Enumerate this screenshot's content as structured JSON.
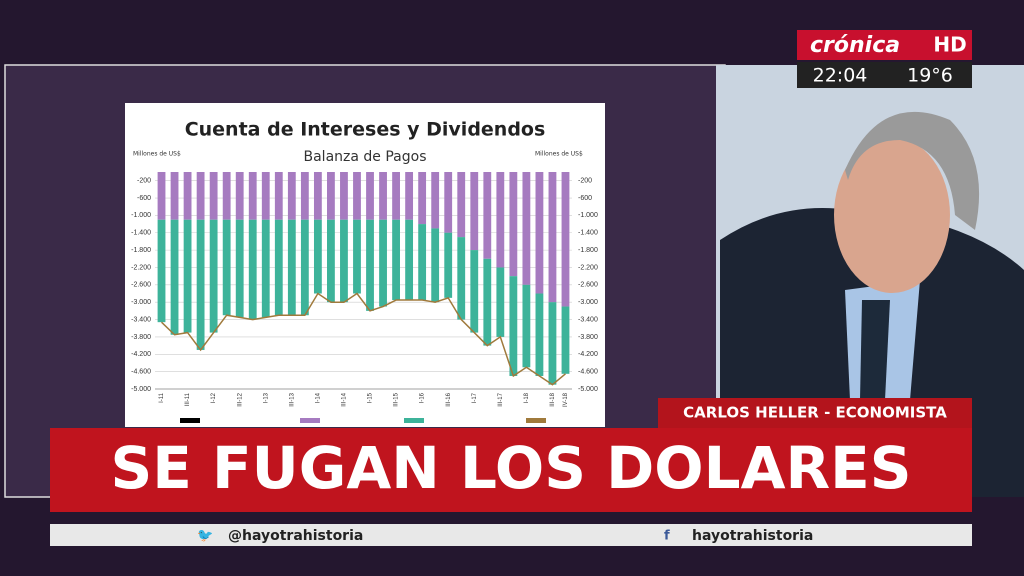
{
  "logo": {
    "brand": "crónica",
    "badge": "HD",
    "time": "22:04",
    "temperature": "19°6"
  },
  "chart_data": {
    "type": "bar",
    "stacked": true,
    "title": "Cuenta de Intereses y Dividendos",
    "subtitle": "Balanza de Pagos",
    "ylabel": "Millones de US$",
    "y2label": "Millones de US$",
    "categories": [
      "I-11",
      null,
      "III-11",
      null,
      "I-12",
      null,
      "III-12",
      null,
      "I-13",
      null,
      "III-13",
      null,
      "I-14",
      null,
      "III-14",
      null,
      "I-15",
      null,
      "III-15",
      null,
      "I-16",
      null,
      "III-16",
      null,
      "I-17",
      null,
      "III-17",
      null,
      "I-18",
      null,
      "III-18",
      "IV-18"
    ],
    "series": [
      {
        "color": "#a67bc0",
        "values": [
          -1100,
          -1100,
          -1100,
          -1100,
          -1100,
          -1100,
          -1100,
          -1100,
          -1100,
          -1100,
          -1100,
          -1100,
          -1100,
          -1100,
          -1100,
          -1100,
          -1100,
          -1100,
          -1100,
          -1100,
          -1200,
          -1300,
          -1400,
          -1500,
          -1800,
          -2000,
          -2200,
          -2400,
          -2600,
          -2800,
          -3000,
          -3100
        ]
      },
      {
        "color": "#3db39a",
        "values": [
          -2360,
          -2650,
          -2600,
          -3000,
          -2600,
          -2200,
          -2250,
          -2300,
          -2250,
          -2200,
          -2200,
          -2200,
          -1700,
          -1900,
          -1900,
          -1700,
          -2100,
          -2000,
          -1850,
          -1850,
          -1750,
          -1700,
          -1500,
          -1900,
          -1900,
          -2000,
          -1600,
          -2300,
          -1900,
          -1900,
          -1900,
          -1550
        ]
      },
      {
        "type": "line",
        "color": "#a07a3c",
        "values": [
          -3460,
          -3750,
          -3700,
          -4100,
          -3700,
          -3300,
          -3350,
          -3400,
          -3350,
          -3300,
          -3300,
          -3300,
          -2800,
          -3000,
          -3000,
          -2800,
          -3200,
          -3100,
          -2950,
          -2950,
          -2950,
          -3000,
          -2900,
          -3400,
          -3700,
          -4000,
          -3800,
          -4700,
          -4500,
          -4700,
          -4900,
          -4650
        ]
      }
    ],
    "ylim": [
      -5000,
      0
    ],
    "yticks": [
      -200,
      -600,
      {
        "value": -1000,
        "label": "-1.000"
      },
      {
        "value": -1400,
        "label": "-1.400"
      },
      {
        "value": -1800,
        "label": "-1.800"
      },
      {
        "value": -2200,
        "label": "-2.200"
      },
      {
        "value": -2600,
        "label": "-2.600"
      },
      {
        "value": -3000,
        "label": "-3.000"
      },
      {
        "value": -3400,
        "label": "-3.400"
      },
      {
        "value": -3800,
        "label": "-3.800"
      },
      {
        "value": -4200,
        "label": "-4.200"
      },
      {
        "value": -4600,
        "label": "-4.600"
      },
      {
        "value": -5000,
        "label": "-5.000"
      }
    ],
    "grid": true
  },
  "nameplate": "CARLOS HELLER - ECONOMISTA",
  "headline": "SE FUGAN LOS DOLARES",
  "ticker": {
    "twitter": "@hayotrahistoria",
    "facebook": "hayotrahistoria"
  }
}
